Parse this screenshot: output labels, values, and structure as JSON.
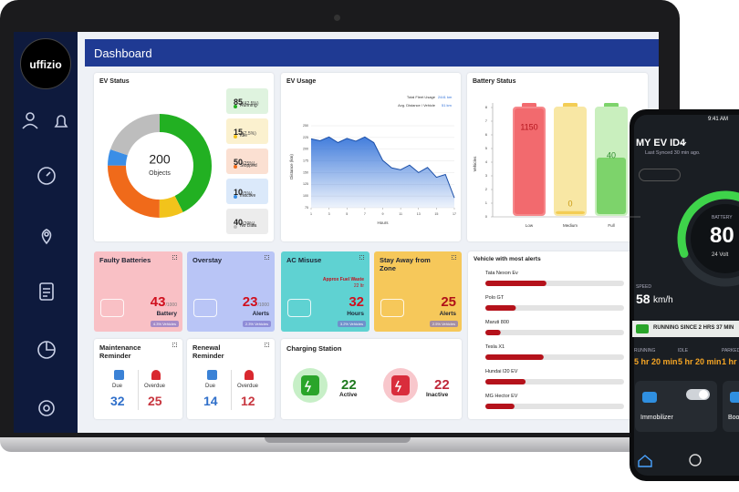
{
  "sidebar": {
    "logo": "uffizio"
  },
  "header": {
    "title": "Dashboard"
  },
  "ev_status": {
    "title": "EV Status",
    "total": 200,
    "total_label": "Objects",
    "items": [
      {
        "count": 85,
        "pct": "(42.5%)",
        "label": "Running",
        "color": "#22b022",
        "bg": "#dff3df"
      },
      {
        "count": 15,
        "pct": "(7.5%)",
        "label": "Idle",
        "color": "#f2c31b",
        "bg": "#fbf1cf"
      },
      {
        "count": 50,
        "pct": "(25%)",
        "label": "Stopped",
        "color": "#f06a1a",
        "bg": "#fbe0d2"
      },
      {
        "count": 10,
        "pct": "(5%)",
        "label": "Inactive",
        "color": "#3a8ee6",
        "bg": "#dbe9fa"
      },
      {
        "count": 40,
        "pct": "(20%)",
        "label": "No Data",
        "color": "#bdbdbd",
        "bg": "#ececec"
      }
    ]
  },
  "ev_usage": {
    "title": "EV Usage",
    "total_label": "Total Fleet Usage",
    "total_value": "2441 km",
    "avg_label": "Avg. Distance / Vehicle",
    "avg_value": "51 km",
    "x_label": "Hours",
    "y_label": "Distance (km)",
    "x": [
      1,
      2,
      3,
      4,
      5,
      6,
      7,
      8,
      9,
      10,
      11,
      12,
      13,
      14,
      15,
      16,
      17
    ],
    "values": [
      222,
      218,
      226,
      214,
      223,
      217,
      226,
      214,
      176,
      160,
      156,
      166,
      150,
      161,
      140,
      146,
      96
    ],
    "xlim": [
      1,
      17
    ],
    "xticks": [
      1,
      3,
      5,
      7,
      9,
      11,
      13,
      15,
      17
    ],
    "ylim": [
      75,
      250
    ],
    "yticks": [
      75,
      100,
      125,
      150,
      175,
      200,
      225,
      250
    ],
    "color": "#2e6fd8"
  },
  "battery_status": {
    "title": "Battery Status",
    "y_label": "Vehicles",
    "ylim": [
      0,
      8
    ],
    "yticks": [
      0,
      1,
      2,
      3,
      4,
      5,
      6,
      7,
      8
    ],
    "items": [
      {
        "label": "Low",
        "value": 1150
      },
      {
        "label": "Medium",
        "value": 0
      },
      {
        "label": "Full",
        "value": 40
      }
    ]
  },
  "cards": [
    {
      "title": "Faulty Batteries",
      "value": 43,
      "of": "/1000",
      "unit": "Battery",
      "badge": "4.3% Vehicles",
      "color": "#f9c0c5"
    },
    {
      "title": "Overstay",
      "value": 23,
      "of": "/1000",
      "unit": "Alerts",
      "badge": "2.3% Vehicles",
      "color": "#b9c5f6"
    },
    {
      "title": "AC Misuse",
      "note": "Approx Fuel Waste",
      "note_value": "22 ltr",
      "value": 32,
      "unit": "Hours",
      "badge": "3.2% Vehicles",
      "color": "#5fd2d2"
    },
    {
      "title": "Stay Away from Zone",
      "value": 25,
      "unit": "Alerts",
      "badge": "2.5% Vehicles",
      "color": "#f6c85a"
    }
  ],
  "vehicle_alerts": {
    "title": "Vehicle with most alerts",
    "xlim": [
      0,
      100
    ],
    "items": [
      {
        "name": "Tata Nexon Ev",
        "value": 44
      },
      {
        "name": "Polo GT",
        "value": 22
      },
      {
        "name": "Maruti 800",
        "value": 11
      },
      {
        "name": "Tesla X1",
        "value": 42
      },
      {
        "name": "Hundai I20 EV",
        "value": 29
      },
      {
        "name": "MG Hector EV",
        "value": 21
      }
    ]
  },
  "reminders": [
    {
      "title": "Maintenance Reminder",
      "due_label": "Due",
      "due": 32,
      "overdue_label": "Overdue",
      "overdue": 25
    },
    {
      "title": "Renewal Reminder",
      "due_label": "Due",
      "due": 14,
      "overdue_label": "Overdue",
      "overdue": 12
    }
  ],
  "charging": {
    "title": "Charging Station",
    "active": 22,
    "active_label": "Active",
    "inactive": 22,
    "inactive_label": "Inactive"
  },
  "phone": {
    "time": "9:41 AM",
    "title": "MY EV ID4",
    "synced": "Last Synced 30 min ago.",
    "speed_label": "SPEED",
    "speed": 58,
    "speed_unit": "km/h",
    "battery_label": "BATTERY",
    "battery": 80,
    "battery_volt": "24 Volt",
    "running_since": "RUNNING SINCE 2 HRS 37 MIN",
    "stats": [
      {
        "label": "RUNNING",
        "value": "5 hr 20 min"
      },
      {
        "label": "IDLE",
        "value": "5 hr 20 min"
      },
      {
        "label": "PARKED",
        "value": "1 hr"
      }
    ],
    "tiles": [
      "Immobilizer",
      "Boot"
    ]
  }
}
